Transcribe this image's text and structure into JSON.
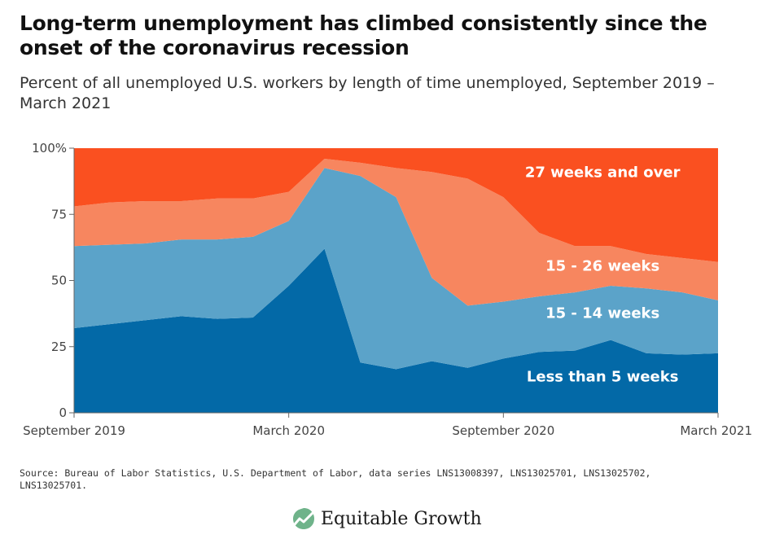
{
  "header": {
    "title": "Long-term unemployment has climbed consistently since the onset of the coronavirus recession",
    "subtitle": "Percent of all unemployed U.S. workers by length of time unemployed, September 2019 – March 2021"
  },
  "footer": {
    "source": "Source: Bureau of Labor Statistics, U.S. Department of Labor, data series LNS13008397, LNS13025701, LNS13025702, LNS13025701.",
    "logo_text": "Equitable Growth",
    "logo_icon": "chart-trend-leaf-icon"
  },
  "chart_data": {
    "type": "area",
    "stacked": true,
    "x": [
      "2019-09",
      "2019-10",
      "2019-11",
      "2019-12",
      "2020-01",
      "2020-02",
      "2020-03",
      "2020-04",
      "2020-05",
      "2020-06",
      "2020-07",
      "2020-08",
      "2020-09",
      "2020-10",
      "2020-11",
      "2020-12",
      "2021-01",
      "2021-02",
      "2021-03"
    ],
    "xticks": [
      {
        "label": "September 2019",
        "index": 0
      },
      {
        "label": "March 2020",
        "index": 6
      },
      {
        "label": "September 2020",
        "index": 12
      },
      {
        "label": "March 2021",
        "index": 18
      }
    ],
    "yticks": [
      {
        "label": "100%",
        "value": 100
      },
      {
        "label": "75",
        "value": 75
      },
      {
        "label": "50",
        "value": 50
      },
      {
        "label": "25",
        "value": 25
      },
      {
        "label": "0",
        "value": 0
      }
    ],
    "ylim": [
      0,
      100
    ],
    "series": [
      {
        "name": "Less than 5 weeks",
        "color": "#0369a7",
        "values": [
          32,
          33.5,
          35,
          36.5,
          35.5,
          36,
          48,
          62,
          19,
          16.5,
          19.5,
          17,
          20.5,
          23,
          23.5,
          27.5,
          22.5,
          22,
          22.5
        ]
      },
      {
        "name": "15 - 14 weeks",
        "color": "#5ba3c9",
        "values": [
          31,
          30,
          29,
          29,
          30,
          30.5,
          24.5,
          30.5,
          70.5,
          65,
          31.5,
          23.5,
          21.5,
          21,
          22,
          20.5,
          24.5,
          23.5,
          20
        ]
      },
      {
        "name": "15 - 26 weeks",
        "color": "#f7865f",
        "values": [
          15,
          16,
          16,
          14.5,
          15.5,
          14.5,
          11,
          3.5,
          5,
          11,
          40,
          48,
          39.5,
          24,
          17.5,
          15,
          13,
          13,
          14.5
        ]
      },
      {
        "name": "27 weeks and over",
        "color": "#fa5020",
        "values": [
          22,
          20.5,
          20,
          20,
          19,
          19,
          16.5,
          4,
          5.5,
          7.5,
          9,
          11.5,
          18.5,
          32,
          37,
          37,
          40,
          41.5,
          43
        ]
      }
    ]
  }
}
